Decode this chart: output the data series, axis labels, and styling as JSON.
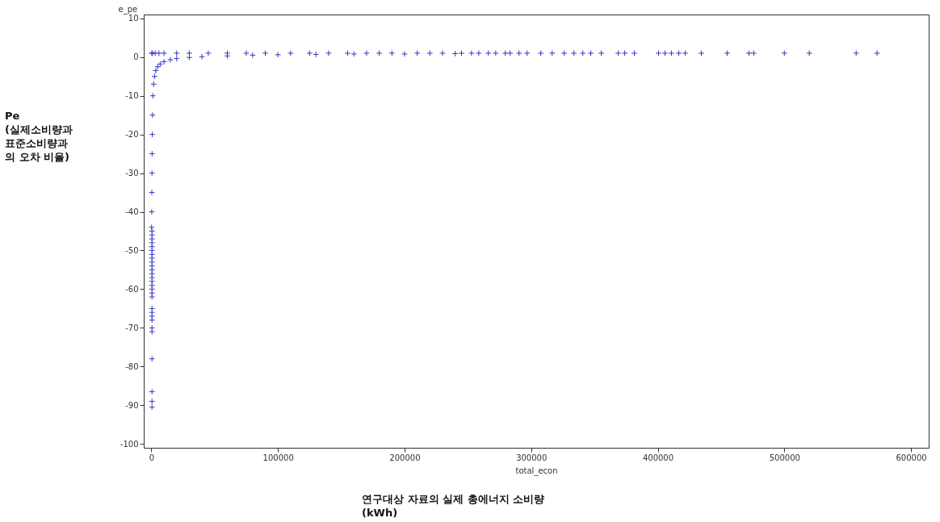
{
  "chart_data": {
    "type": "scatter",
    "xlabel": "total_econ",
    "ylabel": "e_pe",
    "annotations": [
      "Pe\n(실제소비량과\n표준소비량과\n의 오차 비율)",
      "연구대상 자료의 실제 총에너지 소비량\n(kWh)"
    ],
    "marker": "cross",
    "grid": false,
    "xlim": [
      -6000,
      614000
    ],
    "xticks": [
      0,
      100000,
      200000,
      300000,
      400000,
      500000,
      600000
    ],
    "ylim": [
      -101,
      11
    ],
    "yticks": [
      10,
      0,
      -10,
      -20,
      -30,
      -40,
      -50,
      -60,
      -70,
      -80,
      -90,
      -100
    ],
    "series": [
      {
        "color": "#3535c8",
        "x": [
          300,
          1000,
          3000,
          6000,
          10000,
          20000,
          30000,
          45000,
          200,
          300,
          400,
          500,
          600,
          700,
          900,
          1200,
          1800,
          2500,
          3500,
          5000,
          7000,
          10000,
          15000,
          20000,
          30000,
          40000,
          60000,
          80000,
          100000,
          130000,
          160000,
          200000,
          240000,
          60000,
          75000,
          90000,
          110000,
          125000,
          140000,
          155000,
          170000,
          180000,
          190000,
          210000,
          220000,
          230000,
          245000,
          252900,
          258600,
          266200,
          272000,
          279600,
          283400,
          290400,
          296800,
          307600,
          316600,
          326100,
          333800,
          340800,
          347100,
          355400,
          368800,
          373900,
          381500,
          400600,
          405700,
          410800,
          416600,
          421700,
          434400,
          454800,
          472000,
          475800,
          500000,
          519700,
          556700,
          573200,
          500,
          500,
          500,
          500,
          500,
          500,
          500,
          500,
          500,
          500,
          500,
          500,
          500,
          500,
          500,
          500,
          500,
          500,
          500,
          500,
          500,
          500,
          500,
          500,
          500,
          500,
          500,
          500
        ],
        "values": [
          1,
          1,
          1,
          1,
          1,
          1,
          1,
          1,
          -44,
          -40,
          -35,
          -30,
          -25,
          -20,
          -15,
          -10,
          -7,
          -5,
          -3.5,
          -2.5,
          -1.8,
          -1.2,
          -0.7,
          -0.4,
          -0.1,
          0.1,
          0.3,
          0.5,
          0.6,
          0.7,
          0.8,
          0.8,
          0.9,
          1,
          1,
          1,
          1,
          1,
          1,
          1,
          1,
          1,
          1,
          1,
          1,
          1,
          1,
          1,
          1,
          1,
          1,
          1,
          1,
          1,
          1,
          1,
          1,
          1,
          1,
          1,
          1,
          1,
          1,
          1,
          1,
          1,
          1,
          1,
          1,
          1,
          1,
          1,
          1,
          1,
          1,
          1,
          1,
          1,
          -45,
          -46,
          -47,
          -48,
          -49,
          -50,
          -51,
          -52,
          -53,
          -54,
          -55,
          -56,
          -57,
          -58,
          -59,
          -60,
          -61,
          -62,
          -65,
          -66,
          -67,
          -68,
          -70,
          -71,
          -78,
          -86.5,
          -89,
          -90.5
        ]
      }
    ]
  }
}
